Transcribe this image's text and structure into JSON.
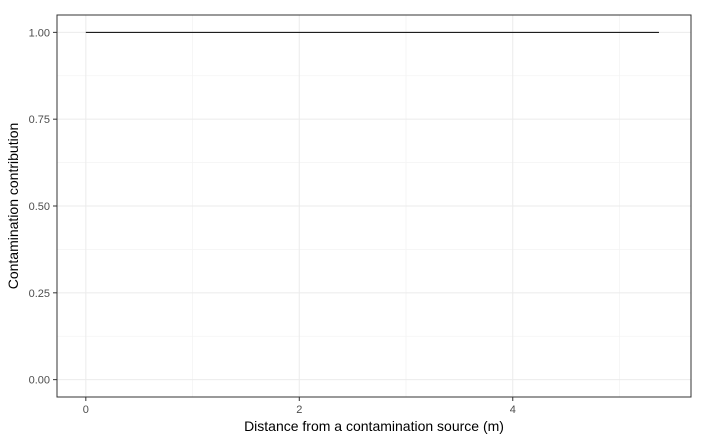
{
  "chart_data": {
    "type": "line",
    "title": "",
    "xlabel": "Distance from a contamination source (m)",
    "ylabel": "Contamination contribution",
    "xlim": [
      -0.27,
      5.67
    ],
    "ylim": [
      -0.05,
      1.05
    ],
    "x_ticks": [
      0,
      2,
      4
    ],
    "x_tick_labels": [
      "0",
      "2",
      "4"
    ],
    "x_minor_ticks": [
      1,
      3,
      5
    ],
    "y_ticks": [
      0.0,
      0.25,
      0.5,
      0.75,
      1.0
    ],
    "y_tick_labels": [
      "0.00",
      "0.25",
      "0.50",
      "0.75",
      "1.00"
    ],
    "y_minor_ticks": [
      0.125,
      0.375,
      0.625,
      0.875
    ],
    "grid": true,
    "legend": "none",
    "series": [
      {
        "x": [
          0,
          5.37
        ],
        "y": [
          1.0,
          1.0
        ],
        "color": "#000000"
      }
    ],
    "colors": {
      "panel_border": "#333333",
      "grid_major": "#ebebeb",
      "grid_minor": "#f4f4f4",
      "tick_text": "#4d4d4d",
      "line": "#000000"
    }
  }
}
